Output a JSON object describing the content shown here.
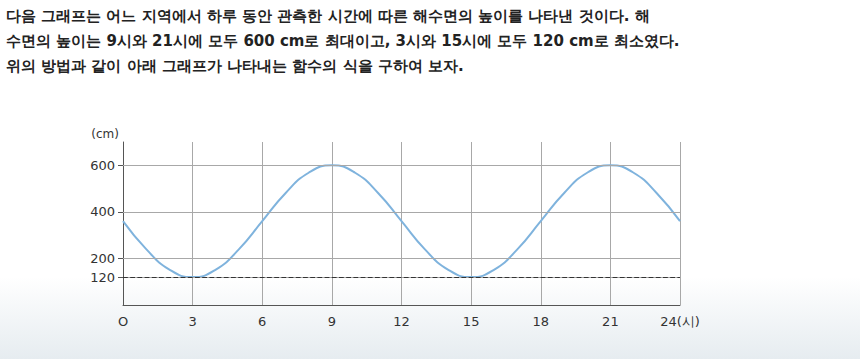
{
  "text": [
    "다음 그래프는 어느 지역에서 하루 동안 관측한 시간에 따른 해수면의 높이를 나타낸 것이다. 해",
    "수면의 높이는 9시와 21시에 모두 600 cm로 최대이고, 3시와 15시에 모두 120 cm로 최소였다.",
    "위의 방법과 같이 아래 그래프가 나타내는 함수의 식을 구하여 보자."
  ],
  "chart_data": {
    "type": "line",
    "y_label": "(cm)",
    "x": [
      0,
      1,
      2,
      3,
      4,
      5,
      6,
      7,
      8,
      9,
      10,
      11,
      12,
      13,
      14,
      15,
      16,
      17,
      18,
      19,
      20,
      21,
      22,
      23,
      24
    ],
    "values": [
      360,
      240,
      152,
      120,
      152,
      240,
      360,
      480,
      568,
      600,
      568,
      480,
      360,
      240,
      152,
      120,
      152,
      240,
      360,
      480,
      568,
      600,
      568,
      480,
      360
    ],
    "color": "#7fb3dd",
    "xlim": [
      0,
      24
    ],
    "xticks": [
      {
        "value": 0,
        "label": "O"
      },
      3,
      6,
      9,
      12,
      15,
      18,
      21,
      {
        "value": 24,
        "label": "24(시)"
      }
    ],
    "ylim": [
      0,
      700
    ],
    "yticks": [
      120,
      200,
      400,
      600
    ],
    "grid": true
  }
}
